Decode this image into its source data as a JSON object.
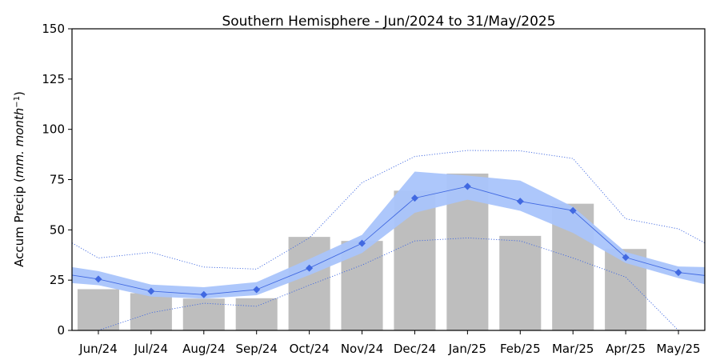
{
  "chart_data": {
    "type": "bar",
    "title": "Southern Hemisphere - Jun/2024 to 31/May/2025",
    "xlabel": "",
    "ylabel": "Accum Precip (",
    "ylabel_italic": "mm. month",
    "ylabel_sup": "−1",
    "ylabel_close": ")",
    "ylim": [
      0,
      150
    ],
    "yticks": [
      0,
      25,
      50,
      75,
      100,
      125,
      150
    ],
    "categories": [
      "Jun/24",
      "Jul/24",
      "Aug/24",
      "Sep/24",
      "Oct/24",
      "Nov/24",
      "Dec/24",
      "Jan/25",
      "Feb/25",
      "Mar/25",
      "Apr/25",
      "May/25"
    ],
    "grid": false,
    "legend": "none",
    "series": [
      {
        "kind": "bar",
        "values": [
          20.5,
          18.5,
          15.8,
          16.0,
          46.5,
          44.5,
          69.5,
          78.0,
          47.0,
          63.0,
          40.5,
          0
        ],
        "color": "#bebebe"
      },
      {
        "kind": "line-marker",
        "values": [
          25.5,
          19.5,
          17.8,
          20.3,
          31.0,
          43.3,
          65.8,
          71.6,
          64.2,
          59.6,
          36.3,
          28.8
        ],
        "edge_left": 27.5,
        "edge_right": 27.3,
        "color": "#4169e1"
      },
      {
        "kind": "band",
        "upper": [
          29.5,
          22.8,
          21.5,
          24.0,
          35.5,
          47.5,
          79.0,
          77.0,
          74.5,
          61.5,
          39.0,
          31.8
        ],
        "lower": [
          22.5,
          16.8,
          15.8,
          17.5,
          27.5,
          38.5,
          58.5,
          65.0,
          59.5,
          48.5,
          33.5,
          26.0
        ],
        "edge_upper_left": 31.5,
        "edge_upper_right": 31.5,
        "edge_lower_left": 23.5,
        "edge_lower_right": 23.0,
        "color": "#a9c4fb"
      },
      {
        "kind": "dotted-upper",
        "values": [
          36.0,
          38.8,
          31.5,
          30.5,
          46.0,
          73.5,
          86.5,
          89.5,
          89.3,
          85.5,
          55.5,
          50.5
        ],
        "edge_left": 43.5,
        "edge_right": 43.5,
        "color": "#4169e1"
      },
      {
        "kind": "dotted-lower",
        "values": [
          0.0,
          8.8,
          13.5,
          12.0,
          22.5,
          32.5,
          44.5,
          46.0,
          44.5,
          36.0,
          26.5,
          0.0
        ],
        "edge_left": null,
        "edge_right": null,
        "color": "#4169e1"
      }
    ]
  }
}
